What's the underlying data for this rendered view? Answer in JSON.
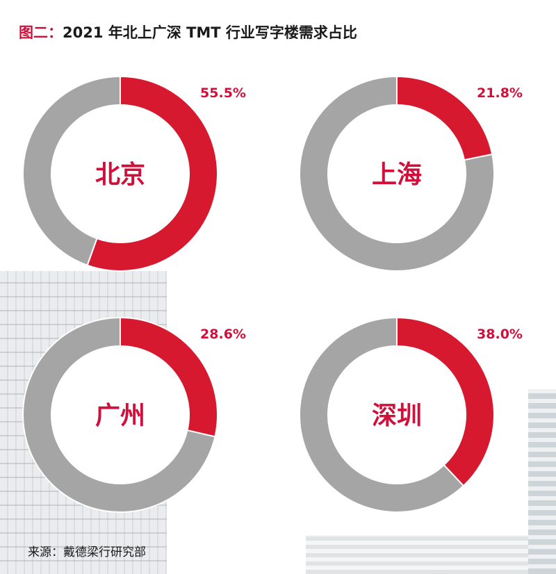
{
  "title": {
    "prefix": "图二：",
    "text": "2021 年北上广深 TMT 行业写字楼需求占比"
  },
  "source": "来源：戴德梁行研究部",
  "chart_data": [
    {
      "type": "pie",
      "donut": true,
      "center_label": "北京",
      "values": [
        55.5,
        44.5
      ],
      "data_label": "55.5%",
      "colors": [
        "#d7192f",
        "#a5a5a5"
      ]
    },
    {
      "type": "pie",
      "donut": true,
      "center_label": "上海",
      "values": [
        21.8,
        78.2
      ],
      "data_label": "21.8%",
      "colors": [
        "#d7192f",
        "#a5a5a5"
      ]
    },
    {
      "type": "pie",
      "donut": true,
      "center_label": "广州",
      "values": [
        28.6,
        71.4
      ],
      "data_label": "28.6%",
      "colors": [
        "#d7192f",
        "#a5a5a5"
      ]
    },
    {
      "type": "pie",
      "donut": true,
      "center_label": "深圳",
      "values": [
        38.0,
        62.0
      ],
      "data_label": "38.0%",
      "colors": [
        "#d7192f",
        "#a5a5a5"
      ]
    }
  ]
}
